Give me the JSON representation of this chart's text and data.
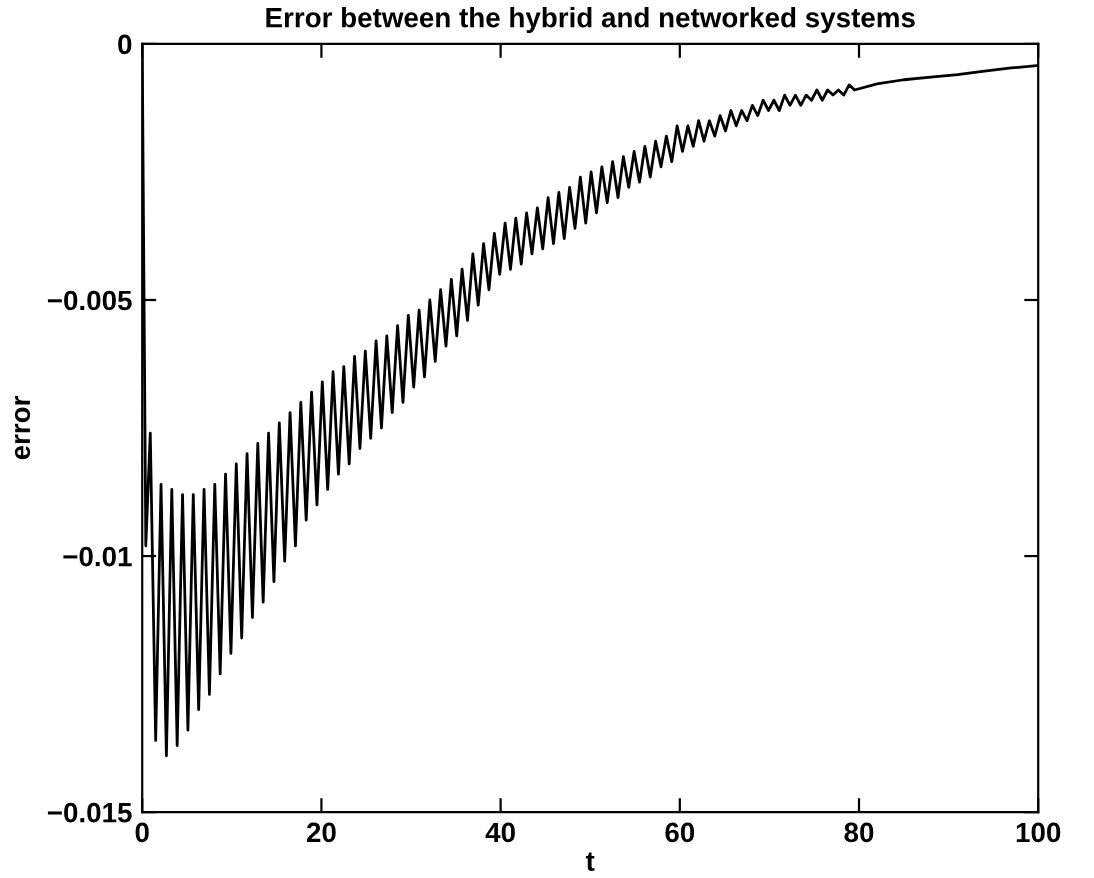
{
  "chart_data": {
    "type": "line",
    "title": "Error between the hybrid and networked systems",
    "xlabel": "t",
    "ylabel": "error",
    "xlim": [
      0,
      100
    ],
    "xticks": [
      0,
      20,
      40,
      60,
      80,
      100
    ],
    "ylim": [
      -0.015,
      0
    ],
    "yticks": [
      {
        "value": -0.015,
        "label": "−0.015"
      },
      {
        "value": -0.01,
        "label": "−0.01"
      },
      {
        "value": -0.005,
        "label": "−0.005"
      },
      0
    ],
    "grid": false,
    "legend": false,
    "marker": "none",
    "line_style": "solid",
    "series": [
      {
        "color": "#000000",
        "x": [
          0,
          0.4,
          0.9,
          1.5,
          2.1,
          2.7,
          3.3,
          3.9,
          4.5,
          5.1,
          5.7,
          6.3,
          6.9,
          7.5,
          8.1,
          8.7,
          9.3,
          9.9,
          10.5,
          11.1,
          11.7,
          12.3,
          12.9,
          13.5,
          14.1,
          14.7,
          15.3,
          15.9,
          16.5,
          17.1,
          17.7,
          18.3,
          18.9,
          19.5,
          20.1,
          20.7,
          21.3,
          21.9,
          22.5,
          23.1,
          23.7,
          24.3,
          24.9,
          25.5,
          26.1,
          26.7,
          27.3,
          27.9,
          28.5,
          29.1,
          29.7,
          30.3,
          30.9,
          31.5,
          32.1,
          32.7,
          33.3,
          33.9,
          34.5,
          35.1,
          35.7,
          36.3,
          36.9,
          37.5,
          38.1,
          38.7,
          39.3,
          39.9,
          40.5,
          41.1,
          41.7,
          42.3,
          42.9,
          43.5,
          44.1,
          44.7,
          45.3,
          45.9,
          46.5,
          47.1,
          47.7,
          48.3,
          48.9,
          49.5,
          50.1,
          50.7,
          51.3,
          51.9,
          52.5,
          53.1,
          53.7,
          54.3,
          54.9,
          55.5,
          56.1,
          56.7,
          57.3,
          57.9,
          58.5,
          59.1,
          59.7,
          60.3,
          60.9,
          61.5,
          62.1,
          62.7,
          63.3,
          63.9,
          64.5,
          65.1,
          65.7,
          66.3,
          66.9,
          67.5,
          68.1,
          68.7,
          69.3,
          69.9,
          70.5,
          71.1,
          71.7,
          72.3,
          72.9,
          73.5,
          74.1,
          74.7,
          75.3,
          75.9,
          76.5,
          77.1,
          77.7,
          78.3,
          78.9,
          79.5,
          82,
          85,
          88,
          91,
          94,
          97,
          100
        ],
        "values": [
          0,
          -0.0098,
          -0.0076,
          -0.0136,
          -0.0086,
          -0.0139,
          -0.0087,
          -0.0137,
          -0.0088,
          -0.0134,
          -0.0088,
          -0.013,
          -0.0087,
          -0.0127,
          -0.0086,
          -0.0123,
          -0.0084,
          -0.0119,
          -0.0082,
          -0.0116,
          -0.008,
          -0.0112,
          -0.0078,
          -0.0109,
          -0.0076,
          -0.0105,
          -0.0074,
          -0.0101,
          -0.0072,
          -0.0098,
          -0.007,
          -0.0093,
          -0.0068,
          -0.009,
          -0.0066,
          -0.0087,
          -0.0064,
          -0.0084,
          -0.0063,
          -0.0082,
          -0.0061,
          -0.0079,
          -0.006,
          -0.0077,
          -0.0058,
          -0.0075,
          -0.0057,
          -0.0072,
          -0.0055,
          -0.007,
          -0.0053,
          -0.0067,
          -0.0052,
          -0.0065,
          -0.005,
          -0.0062,
          -0.0048,
          -0.0059,
          -0.0046,
          -0.0057,
          -0.0044,
          -0.0054,
          -0.0041,
          -0.0051,
          -0.0039,
          -0.0048,
          -0.0037,
          -0.0045,
          -0.0035,
          -0.0044,
          -0.0034,
          -0.0043,
          -0.0033,
          -0.0041,
          -0.0032,
          -0.004,
          -0.003,
          -0.0039,
          -0.0029,
          -0.0038,
          -0.0028,
          -0.0036,
          -0.0026,
          -0.0035,
          -0.0025,
          -0.0033,
          -0.0024,
          -0.0031,
          -0.0023,
          -0.003,
          -0.0022,
          -0.0028,
          -0.0021,
          -0.0027,
          -0.002,
          -0.0026,
          -0.0019,
          -0.0024,
          -0.0018,
          -0.0023,
          -0.0016,
          -0.0021,
          -0.0016,
          -0.002,
          -0.0015,
          -0.0019,
          -0.0015,
          -0.0018,
          -0.0014,
          -0.0017,
          -0.0013,
          -0.0016,
          -0.0013,
          -0.0015,
          -0.0012,
          -0.0014,
          -0.0011,
          -0.0013,
          -0.0011,
          -0.0013,
          -0.001,
          -0.0012,
          -0.001,
          -0.0012,
          -0.001,
          -0.0011,
          -0.0009,
          -0.0011,
          -0.0009,
          -0.001,
          -0.0009,
          -0.001,
          -0.0008,
          -0.0009,
          -0.00078,
          -0.0007,
          -0.00065,
          -0.0006,
          -0.00053,
          -0.00047,
          -0.00042
        ]
      }
    ]
  }
}
